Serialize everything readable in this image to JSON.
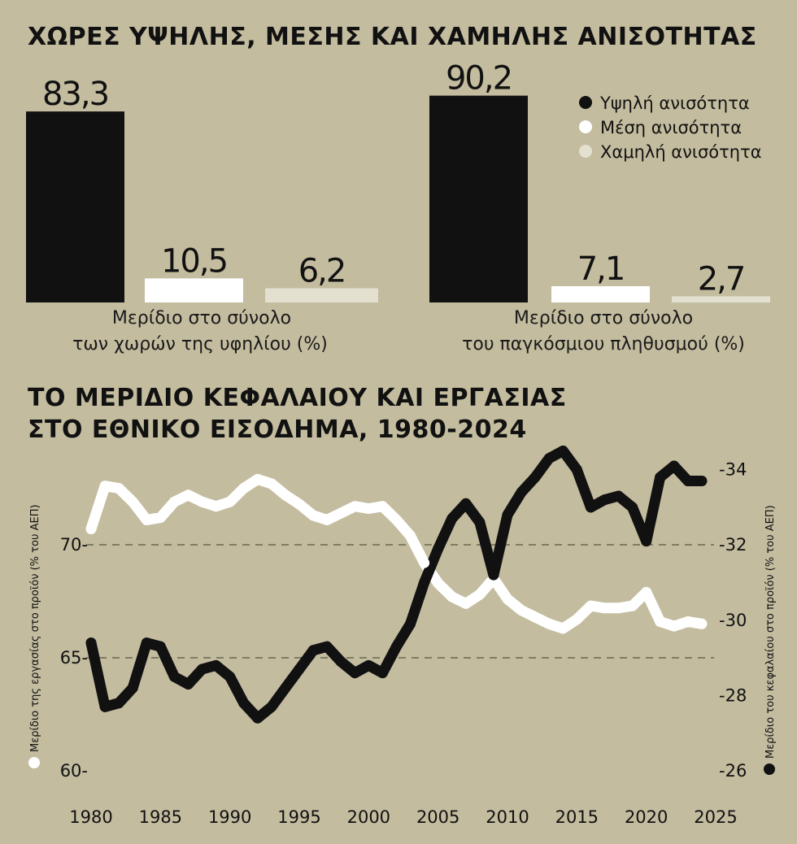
{
  "titles": {
    "top": "ΧΩΡΕΣ ΥΨΗΛΗΣ, ΜΕΣΗΣ ΚΑΙ ΧΑΜΗΛΗΣ ΑΝΙΣΟΤΗΤΑΣ",
    "line1": "ΤΟ ΜΕΡΙΔΙΟ ΚΕΦΑΛΑΙΟΥ ΚΑΙ ΕΡΓΑΣΙΑΣ",
    "line2": "ΣΤΟ ΕΘΝΙΚΟ ΕΙΣΟΔΗΜΑ, 1980-2024"
  },
  "colors": {
    "background": "#c3bc9f",
    "high": "#111111",
    "medium": "#ffffff",
    "low": "#e3e0cf"
  },
  "chart_data": [
    {
      "type": "bar",
      "categories": [
        "Υψηλή ανισότητα",
        "Μέση ανισότητα",
        "Χαμηλή ανισότητα"
      ],
      "values": [
        83.3,
        10.5,
        6.2
      ],
      "labels": [
        "83,3",
        "10,5",
        "6,2"
      ],
      "caption": [
        "Μερίδιο στο σύνολο",
        "των χωρών της υφηλίου (%)"
      ]
    },
    {
      "type": "bar",
      "categories": [
        "Υψηλή ανισότητα",
        "Μέση ανισότητα",
        "Χαμηλή ανισότητα"
      ],
      "values": [
        90.2,
        7.1,
        2.7
      ],
      "labels": [
        "90,2",
        "7,1",
        "2,7"
      ],
      "caption": [
        "Μερίδιο στο σύνολο",
        "του παγκόσμιου πληθυσμού (%)"
      ]
    },
    {
      "type": "line",
      "xlim": [
        1980,
        2025
      ],
      "xticks": [
        "1980",
        "1985",
        "1990",
        "1995",
        "2000",
        "2005",
        "2010",
        "2015",
        "2020",
        "2025"
      ],
      "ylim_left": [
        60,
        73
      ],
      "yticks_left": [
        "60-",
        "65-",
        "70-"
      ],
      "ylim_right": [
        26,
        34.5
      ],
      "yticks_right": [
        "-26",
        "-28",
        "-30",
        "-32",
        "-34"
      ],
      "ylabel_left": "Μερίδιο της εργασίας στο προϊόν (% του ΑΕΠ)",
      "ylabel_right": "Μερίδιο του κεφαλαίου στο προϊόν (% του ΑΕΠ)",
      "grid": "dashed at 65 and 70",
      "series": [
        {
          "name": "Μερίδιο της εργασίας στο προϊόν (% του ΑΕΠ)",
          "axis": "left",
          "color": "#ffffff",
          "x": [
            1980,
            1981,
            1982,
            1983,
            1984,
            1985,
            1986,
            1987,
            1988,
            1989,
            1990,
            1991,
            1992,
            1993,
            1994,
            1995,
            1996,
            1997,
            1998,
            1999,
            2000,
            2001,
            2002,
            2003,
            2004,
            2005,
            2006,
            2007,
            2008,
            2009,
            2010,
            2011,
            2012,
            2013,
            2014,
            2015,
            2016,
            2017,
            2018,
            2019,
            2020,
            2021,
            2022,
            2023,
            2024
          ],
          "y": [
            70.7,
            72.6,
            72.5,
            71.9,
            71.1,
            71.2,
            71.9,
            72.2,
            71.9,
            71.7,
            71.9,
            72.5,
            72.9,
            72.7,
            72.2,
            71.8,
            71.3,
            71.1,
            71.4,
            71.7,
            71.6,
            71.7,
            71.1,
            70.4,
            69.2,
            68.3,
            67.7,
            67.4,
            67.8,
            68.5,
            67.6,
            67.1,
            66.8,
            66.5,
            66.3,
            66.7,
            67.3,
            67.2,
            67.2,
            67.3,
            67.9,
            66.6,
            66.4,
            66.6,
            66.5
          ]
        },
        {
          "name": "Μερίδιο του κεφαλαίου στο προϊόν (% του ΑΕΠ)",
          "axis": "right",
          "color": "#111111",
          "x": [
            1980,
            1981,
            1982,
            1983,
            1984,
            1985,
            1986,
            1987,
            1988,
            1989,
            1990,
            1991,
            1992,
            1993,
            1994,
            1995,
            1996,
            1997,
            1998,
            1999,
            2000,
            2001,
            2002,
            2003,
            2004,
            2005,
            2006,
            2007,
            2008,
            2009,
            2010,
            2011,
            2012,
            2013,
            2014,
            2015,
            2016,
            2017,
            2018,
            2019,
            2020,
            2021,
            2022,
            2023,
            2024
          ],
          "y": [
            29.4,
            27.7,
            27.8,
            28.2,
            29.4,
            29.3,
            28.5,
            28.3,
            28.7,
            28.8,
            28.5,
            27.8,
            27.4,
            27.7,
            28.2,
            28.7,
            29.2,
            29.3,
            28.9,
            28.6,
            28.8,
            28.6,
            29.3,
            29.9,
            31.0,
            31.9,
            32.7,
            33.1,
            32.6,
            31.2,
            32.8,
            33.4,
            33.8,
            34.3,
            34.5,
            34.0,
            33.0,
            33.2,
            33.3,
            33.0,
            32.1,
            33.8,
            34.1,
            33.7,
            33.7
          ]
        }
      ]
    }
  ]
}
